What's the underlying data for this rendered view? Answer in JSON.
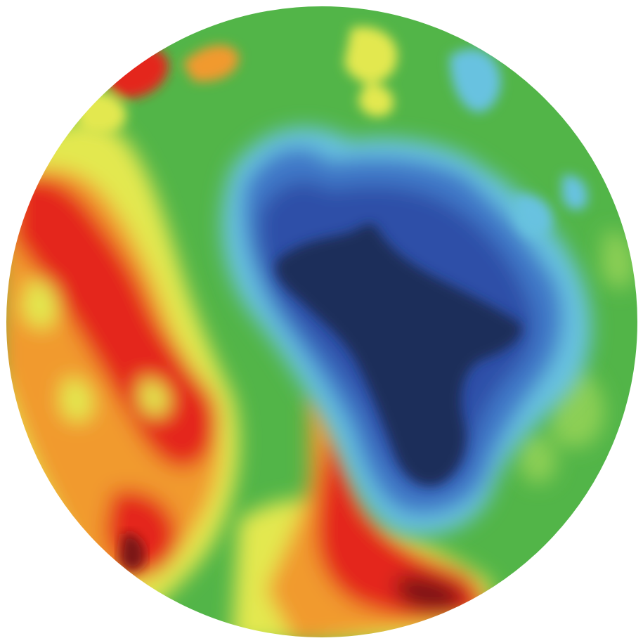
{
  "map": {
    "projection": "polar-disc",
    "palette": {
      "darkest_low": "#1e2d5a",
      "low": "#2f4fa8",
      "mid_low": "#3f78c8",
      "cyan": "#67c2e0",
      "neutral": "#52b548",
      "neutral_light": "#8ccf55",
      "yellow": "#e3e84f",
      "orange": "#f19a2e",
      "red": "#e4271f",
      "darkest_high": "#7a1216"
    },
    "dominant_fill": "#52b548"
  }
}
